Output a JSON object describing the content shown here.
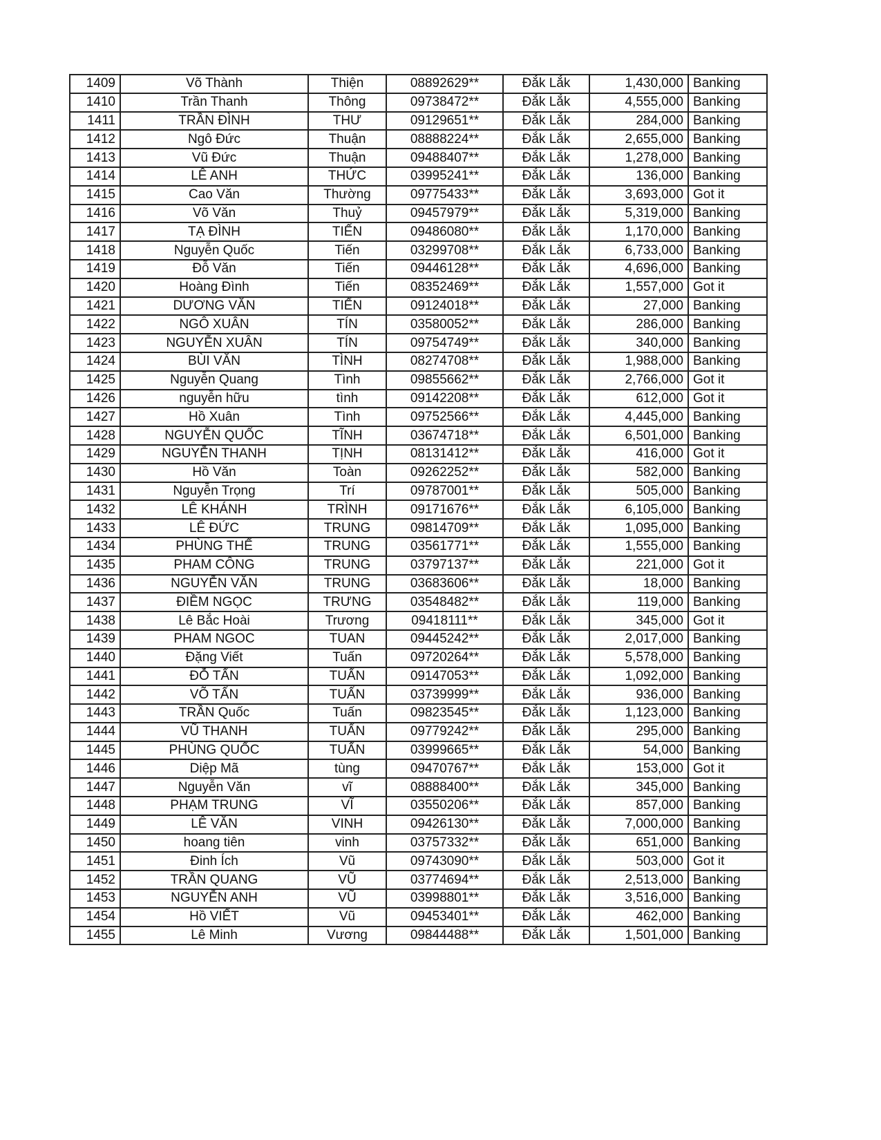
{
  "rows": [
    {
      "no": "1409",
      "last": "Võ Thành",
      "first": "Thiện",
      "phone": "08892629**",
      "province": "Đắk Lắk",
      "amount": "1,430,000",
      "method": "Banking"
    },
    {
      "no": "1410",
      "last": "Trần Thanh",
      "first": "Thông",
      "phone": "09738472**",
      "province": "Đắk Lắk",
      "amount": "4,555,000",
      "method": "Banking"
    },
    {
      "no": "1411",
      "last": "TRẦN ĐÌNH",
      "first": "THƯ",
      "phone": "09129651**",
      "province": "Đắk Lắk",
      "amount": "284,000",
      "method": "Banking"
    },
    {
      "no": "1412",
      "last": "Ngô Đức",
      "first": "Thuận",
      "phone": "08888224**",
      "province": "Đắk Lắk",
      "amount": "2,655,000",
      "method": "Banking"
    },
    {
      "no": "1413",
      "last": "Vũ Đức",
      "first": "Thuận",
      "phone": "09488407**",
      "province": "Đắk Lắk",
      "amount": "1,278,000",
      "method": "Banking"
    },
    {
      "no": "1414",
      "last": "LÊ ANH",
      "first": "THỨC",
      "phone": "03995241**",
      "province": "Đắk Lắk",
      "amount": "136,000",
      "method": "Banking"
    },
    {
      "no": "1415",
      "last": "Cao Văn",
      "first": "Thường",
      "phone": "09775433**",
      "province": "Đắk Lắk",
      "amount": "3,693,000",
      "method": "Got it"
    },
    {
      "no": "1416",
      "last": "Võ Văn",
      "first": "Thuỷ",
      "phone": "09457979**",
      "province": "Đắk Lắk",
      "amount": "5,319,000",
      "method": "Banking"
    },
    {
      "no": "1417",
      "last": "TẠ ĐÌNH",
      "first": "TIẾN",
      "phone": "09486080**",
      "province": "Đắk Lắk",
      "amount": "1,170,000",
      "method": "Banking"
    },
    {
      "no": "1418",
      "last": "Nguyễn Quốc",
      "first": "Tiến",
      "phone": "03299708**",
      "province": "Đắk Lắk",
      "amount": "6,733,000",
      "method": "Banking"
    },
    {
      "no": "1419",
      "last": "Đỗ Văn",
      "first": "Tiến",
      "phone": "09446128**",
      "province": "Đắk Lắk",
      "amount": "4,696,000",
      "method": "Banking"
    },
    {
      "no": "1420",
      "last": "Hoàng Đình",
      "first": "Tiến",
      "phone": "08352469**",
      "province": "Đắk Lắk",
      "amount": "1,557,000",
      "method": "Got it"
    },
    {
      "no": "1421",
      "last": "DƯƠNG VĂN",
      "first": "TIẾN",
      "phone": "09124018**",
      "province": "Đắk Lắk",
      "amount": "27,000",
      "method": "Banking"
    },
    {
      "no": "1422",
      "last": "NGÔ XUÂN",
      "first": "TÍN",
      "phone": "03580052**",
      "province": "Đắk Lắk",
      "amount": "286,000",
      "method": "Banking"
    },
    {
      "no": "1423",
      "last": "NGUYỄN XUÂN",
      "first": "TÍN",
      "phone": "09754749**",
      "province": "Đắk Lắk",
      "amount": "340,000",
      "method": "Banking"
    },
    {
      "no": "1424",
      "last": "BÙI VĂN",
      "first": "TÌNH",
      "phone": "08274708**",
      "province": "Đắk Lắk",
      "amount": "1,988,000",
      "method": "Banking"
    },
    {
      "no": "1425",
      "last": "Nguyễn Quang",
      "first": "Tình",
      "phone": "09855662**",
      "province": "Đắk Lắk",
      "amount": "2,766,000",
      "method": "Got it"
    },
    {
      "no": "1426",
      "last": "nguyễn  hữu",
      "first": "tình",
      "phone": "09142208**",
      "province": "Đắk Lắk",
      "amount": "612,000",
      "method": "Got it"
    },
    {
      "no": "1427",
      "last": "Hồ Xuân",
      "first": "Tình",
      "phone": "09752566**",
      "province": "Đắk Lắk",
      "amount": "4,445,000",
      "method": "Banking"
    },
    {
      "no": "1428",
      "last": "NGUYỄN QUỐC",
      "first": "TĨNH",
      "phone": "03674718**",
      "province": "Đắk Lắk",
      "amount": "6,501,000",
      "method": "Banking"
    },
    {
      "no": "1429",
      "last": "NGUYỄN THANH",
      "first": "TỊNH",
      "phone": "08131412**",
      "province": "Đắk Lắk",
      "amount": "416,000",
      "method": "Got it"
    },
    {
      "no": "1430",
      "last": "Hồ Văn",
      "first": "Toàn",
      "phone": "09262252**",
      "province": "Đắk Lắk",
      "amount": "582,000",
      "method": "Banking"
    },
    {
      "no": "1431",
      "last": "Nguyễn Trọng",
      "first": "Trí",
      "phone": "09787001**",
      "province": "Đắk Lắk",
      "amount": "505,000",
      "method": "Banking"
    },
    {
      "no": "1432",
      "last": "LÊ KHÁNH",
      "first": "TRÌNH",
      "phone": "09171676**",
      "province": "Đắk Lắk",
      "amount": "6,105,000",
      "method": "Banking"
    },
    {
      "no": "1433",
      "last": "LÊ ĐỨC",
      "first": "TRUNG",
      "phone": "09814709**",
      "province": "Đắk Lắk",
      "amount": "1,095,000",
      "method": "Banking"
    },
    {
      "no": "1434",
      "last": "PHÙNG THẾ",
      "first": "TRUNG",
      "phone": "03561771**",
      "province": "Đắk Lắk",
      "amount": "1,555,000",
      "method": "Banking"
    },
    {
      "no": "1435",
      "last": "PHAM CÔNG",
      "first": "TRUNG",
      "phone": "03797137**",
      "province": "Đắk Lắk",
      "amount": "221,000",
      "method": "Got it"
    },
    {
      "no": "1436",
      "last": "NGUYỄN VĂN",
      "first": "TRUNG",
      "phone": "03683606**",
      "province": "Đắk Lắk",
      "amount": "18,000",
      "method": "Banking"
    },
    {
      "no": "1437",
      "last": "ĐIỀM NGỌC",
      "first": "TRƯNG",
      "phone": "03548482**",
      "province": "Đắk Lắk",
      "amount": "119,000",
      "method": "Banking"
    },
    {
      "no": "1438",
      "last": "Lê Bắc Hoài",
      "first": "Trương",
      "phone": "09418111**",
      "province": "Đắk Lắk",
      "amount": "345,000",
      "method": "Got it"
    },
    {
      "no": "1439",
      "last": "PHAM NGOC",
      "first": "TUAN",
      "phone": "09445242**",
      "province": "Đắk Lắk",
      "amount": "2,017,000",
      "method": "Banking"
    },
    {
      "no": "1440",
      "last": "Đặng Viết",
      "first": "Tuấn",
      "phone": "09720264**",
      "province": "Đắk Lắk",
      "amount": "5,578,000",
      "method": "Banking"
    },
    {
      "no": "1441",
      "last": "ĐỖ TẤN",
      "first": "TUẤN",
      "phone": "09147053**",
      "province": "Đắk Lắk",
      "amount": "1,092,000",
      "method": "Banking"
    },
    {
      "no": "1442",
      "last": "VÕ TẤN",
      "first": "TUẤN",
      "phone": "03739999**",
      "province": "Đắk Lắk",
      "amount": "936,000",
      "method": "Banking"
    },
    {
      "no": "1443",
      "last": "TRẦN Quốc",
      "first": "Tuấn",
      "phone": "09823545**",
      "province": "Đắk Lắk",
      "amount": "1,123,000",
      "method": "Banking"
    },
    {
      "no": "1444",
      "last": "VŨ THANH",
      "first": "TUẤN",
      "phone": "09779242**",
      "province": "Đắk Lắk",
      "amount": "295,000",
      "method": "Banking"
    },
    {
      "no": "1445",
      "last": "PHÙNG QUỐC",
      "first": "TUẤN",
      "phone": "03999665**",
      "province": "Đắk Lắk",
      "amount": "54,000",
      "method": "Banking"
    },
    {
      "no": "1446",
      "last": "Diệp Mã",
      "first": "tùng",
      "phone": "09470767**",
      "province": "Đắk Lắk",
      "amount": "153,000",
      "method": "Got it"
    },
    {
      "no": "1447",
      "last": "Nguyễn Văn",
      "first": "vĩ",
      "phone": "08888400**",
      "province": "Đắk Lắk",
      "amount": "345,000",
      "method": "Banking"
    },
    {
      "no": "1448",
      "last": "PHẠM TRUNG",
      "first": "VĨ",
      "phone": "03550206**",
      "province": "Đắk Lắk",
      "amount": "857,000",
      "method": "Banking"
    },
    {
      "no": "1449",
      "last": "LÊ VĂN",
      "first": "VINH",
      "phone": "09426130**",
      "province": "Đắk Lắk",
      "amount": "7,000,000",
      "method": "Banking"
    },
    {
      "no": "1450",
      "last": "hoang tiên",
      "first": "vinh",
      "phone": "03757332**",
      "province": "Đắk Lắk",
      "amount": "651,000",
      "method": "Banking"
    },
    {
      "no": "1451",
      "last": "Đinh Ích",
      "first": "Vũ",
      "phone": "09743090**",
      "province": "Đắk Lắk",
      "amount": "503,000",
      "method": "Got it"
    },
    {
      "no": "1452",
      "last": "TRẦN QUANG",
      "first": "VŨ",
      "phone": "03774694**",
      "province": "Đắk Lắk",
      "amount": "2,513,000",
      "method": "Banking"
    },
    {
      "no": "1453",
      "last": "NGUYỄN ANH",
      "first": "VŨ",
      "phone": "03998801**",
      "province": "Đắk Lắk",
      "amount": "3,516,000",
      "method": "Banking"
    },
    {
      "no": "1454",
      "last": "Hồ VIẾT",
      "first": "Vũ",
      "phone": "09453401**",
      "province": "Đắk Lắk",
      "amount": "462,000",
      "method": "Banking"
    },
    {
      "no": "1455",
      "last": "Lê Minh",
      "first": "Vương",
      "phone": "09844488**",
      "province": "Đắk Lắk",
      "amount": "1,501,000",
      "method": "Banking"
    }
  ]
}
